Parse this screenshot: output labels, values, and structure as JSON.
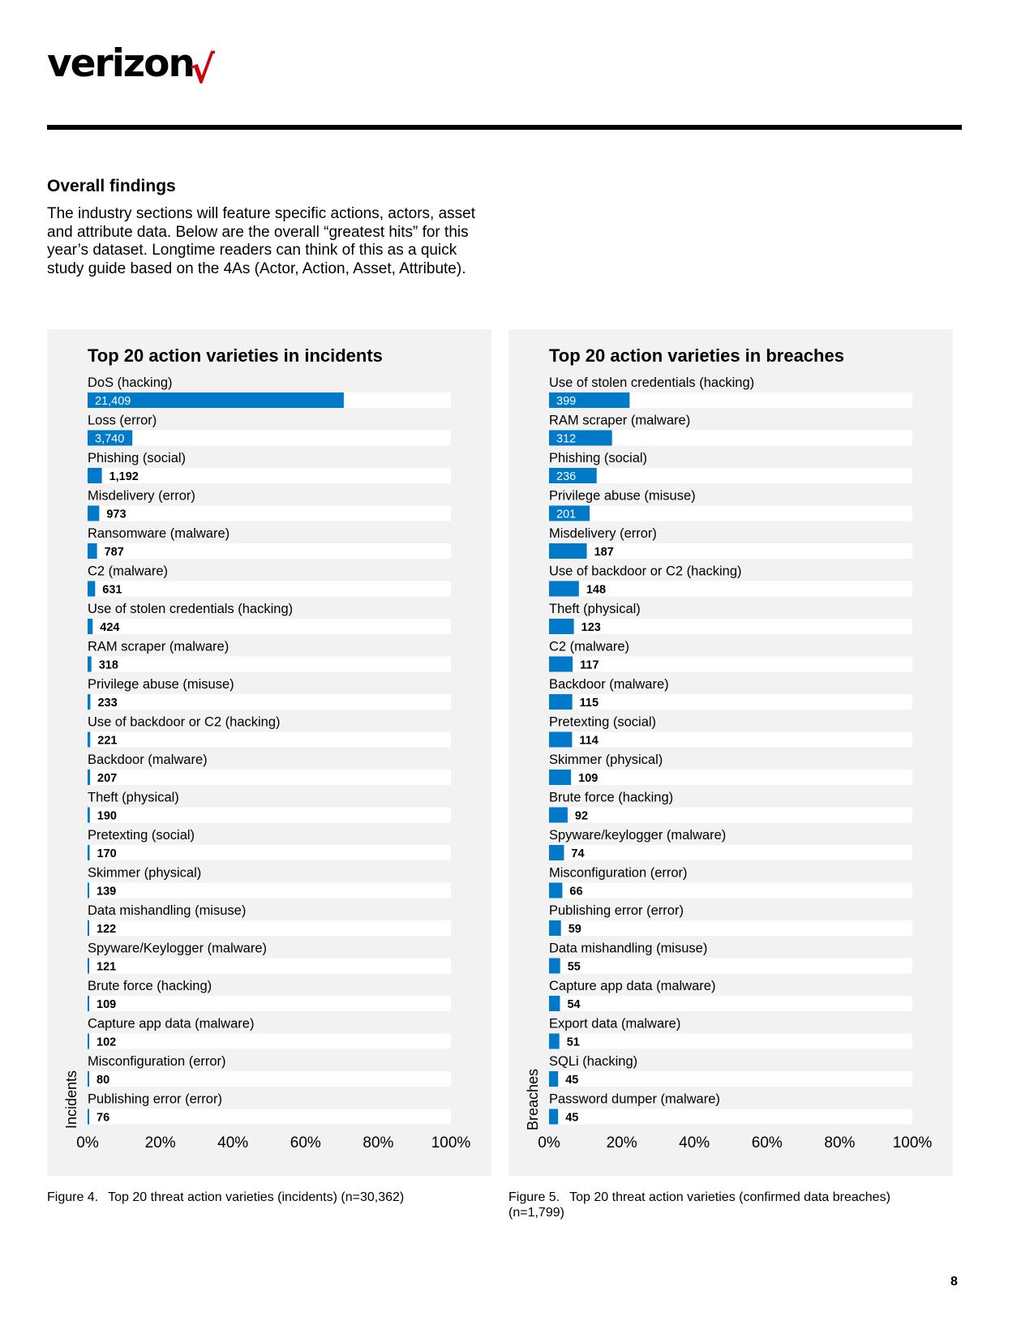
{
  "header": {
    "brand": "verizon",
    "brand_mark": "√",
    "brand_color": "#000000",
    "mark_color": "#cd040b"
  },
  "intro": {
    "title": "Overall findings",
    "body": "The industry sections will feature specific actions, actors, asset and attribute data. Below are the overall “greatest hits” for this year’s dataset. Longtime readers can think of this as a quick study guide based on the 4As (Actor, Action, Asset, Attribute)."
  },
  "colors": {
    "bar": "#0079c8",
    "track": "#ffffff",
    "panel": "#f2f2f2",
    "value_label_inside": "#ffffff",
    "value_label_outside": "#000000"
  },
  "chart_data": [
    {
      "type": "bar",
      "orientation": "horizontal",
      "title": "Top 20 action varieties in incidents",
      "ylabel": "Incidents",
      "xlabel": "",
      "total": 30362,
      "xlim": [
        0,
        100
      ],
      "xticks": [
        "0%",
        "20%",
        "40%",
        "60%",
        "80%",
        "100%"
      ],
      "categories": [
        "DoS (hacking)",
        "Loss (error)",
        "Phishing (social)",
        "Misdelivery (error)",
        "Ransomware (malware)",
        "C2 (malware)",
        "Use of stolen credentials (hacking)",
        "RAM scraper (malware)",
        "Privilege abuse (misuse)",
        "Use of backdoor or C2 (hacking)",
        "Backdoor (malware)",
        "Theft (physical)",
        "Pretexting (social)",
        "Skimmer (physical)",
        "Data mishandling (misuse)",
        "Spyware/Keylogger (malware)",
        "Brute force (hacking)",
        "Capture app data (malware)",
        "Misconfiguration (error)",
        "Publishing error (error)"
      ],
      "values": [
        21409,
        3740,
        1192,
        973,
        787,
        631,
        424,
        318,
        233,
        221,
        207,
        190,
        170,
        139,
        122,
        121,
        109,
        102,
        80,
        76
      ],
      "value_labels": [
        "21,409",
        "3,740",
        "1,192",
        "973",
        "787",
        "631",
        "424",
        "318",
        "233",
        "221",
        "207",
        "190",
        "170",
        "139",
        "122",
        "121",
        "109",
        "102",
        "80",
        "76"
      ]
    },
    {
      "type": "bar",
      "orientation": "horizontal",
      "title": "Top 20 action varieties in breaches",
      "ylabel": "Breaches",
      "xlabel": "",
      "total": 1799,
      "xlim": [
        0,
        100
      ],
      "xticks": [
        "0%",
        "20%",
        "40%",
        "60%",
        "80%",
        "100%"
      ],
      "categories": [
        "Use of stolen credentials (hacking)",
        "RAM scraper (malware)",
        "Phishing (social)",
        "Privilege abuse (misuse)",
        "Misdelivery (error)",
        "Use of backdoor or C2 (hacking)",
        "Theft (physical)",
        "C2 (malware)",
        "Backdoor (malware)",
        "Pretexting (social)",
        "Skimmer (physical)",
        "Brute force (hacking)",
        "Spyware/keylogger (malware)",
        "Misconfiguration (error)",
        "Publishing error (error)",
        "Data mishandling (misuse)",
        "Capture app data (malware)",
        "Export data (malware)",
        "SQLi (hacking)",
        "Password dumper (malware)"
      ],
      "values": [
        399,
        312,
        236,
        201,
        187,
        148,
        123,
        117,
        115,
        114,
        109,
        92,
        74,
        66,
        59,
        55,
        54,
        51,
        45,
        45
      ],
      "value_labels": [
        "399",
        "312",
        "236",
        "201",
        "187",
        "148",
        "123",
        "117",
        "115",
        "114",
        "109",
        "92",
        "74",
        "66",
        "59",
        "55",
        "54",
        "51",
        "45",
        "45"
      ]
    }
  ],
  "captions": [
    {
      "number": "Figure 4.",
      "text": "Top 20 threat action varieties (incidents) (n=30,362)"
    },
    {
      "number": "Figure 5.",
      "text": "Top 20 threat action varieties (confirmed data breaches) (n=1,799)"
    }
  ],
  "page_number": "8"
}
